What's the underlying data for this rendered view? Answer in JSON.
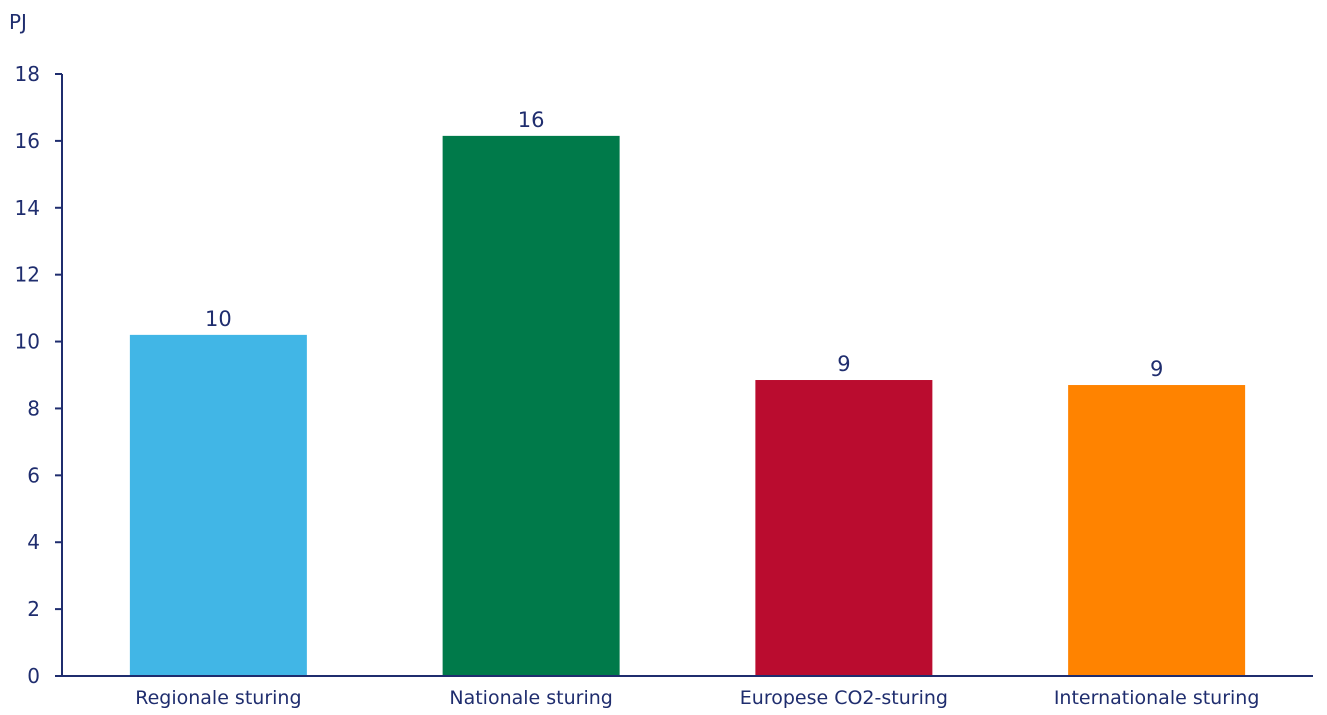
{
  "chart_data": {
    "type": "bar",
    "ylabel": "PJ",
    "categories": [
      "Regionale sturing",
      "Nationale sturing",
      "Europese CO2-sturing",
      "Internationale sturing"
    ],
    "values": [
      10.2,
      16.15,
      8.85,
      8.7
    ],
    "data_labels": [
      "10",
      "16",
      "9",
      "9"
    ],
    "colors": [
      "#41b6e6",
      "#007a4a",
      "#ba0c2f",
      "#ff8300"
    ],
    "ylim": [
      0,
      18
    ],
    "yticks": [
      0,
      2,
      4,
      6,
      8,
      10,
      12,
      14,
      16,
      18
    ],
    "grid": false,
    "legend": "none"
  }
}
